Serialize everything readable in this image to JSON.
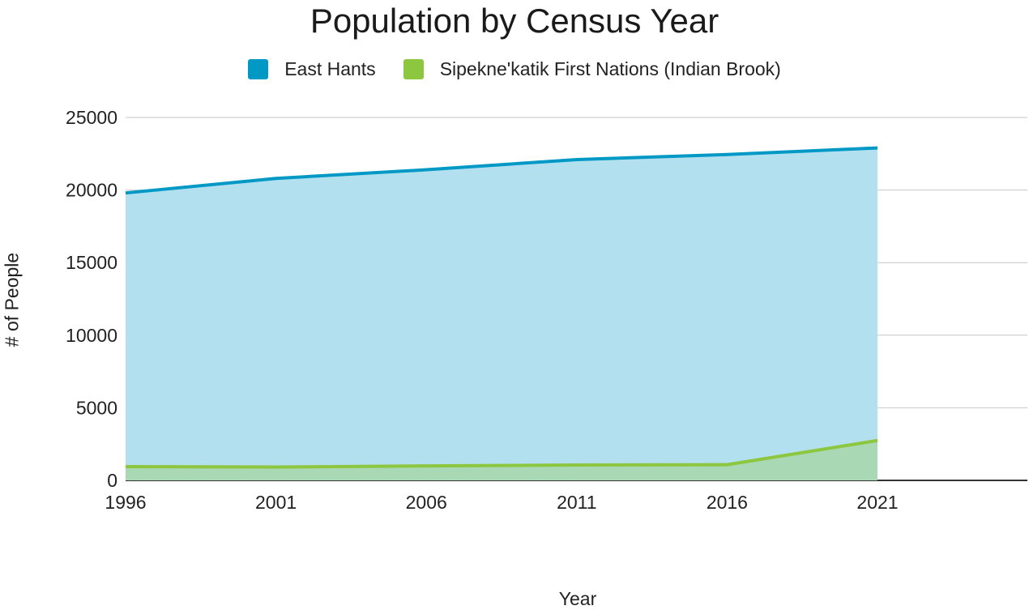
{
  "chart_data": {
    "type": "area",
    "title": "Population by Census Year",
    "xlabel": "Year",
    "ylabel": "# of People",
    "x": [
      1996,
      2001,
      2006,
      2011,
      2016,
      2021
    ],
    "xticks": [
      "1996",
      "2001",
      "2006",
      "2011",
      "2016",
      "2021"
    ],
    "yticks": [
      "0",
      "5000",
      "10000",
      "15000",
      "20000",
      "25000"
    ],
    "ylim": [
      0,
      25000
    ],
    "grid": true,
    "legend_position": "top",
    "series": [
      {
        "name": "East Hants",
        "color": "#0099c6",
        "fill": "#b3e0ef",
        "values": [
          19800,
          20800,
          21400,
          22100,
          22450,
          22900
        ]
      },
      {
        "name": "Sipekne'katik First Nations (Indian Brook)",
        "color": "#8dc63f",
        "fill": "#a8d8b4",
        "values": [
          950,
          920,
          1000,
          1060,
          1080,
          2750
        ]
      }
    ]
  }
}
